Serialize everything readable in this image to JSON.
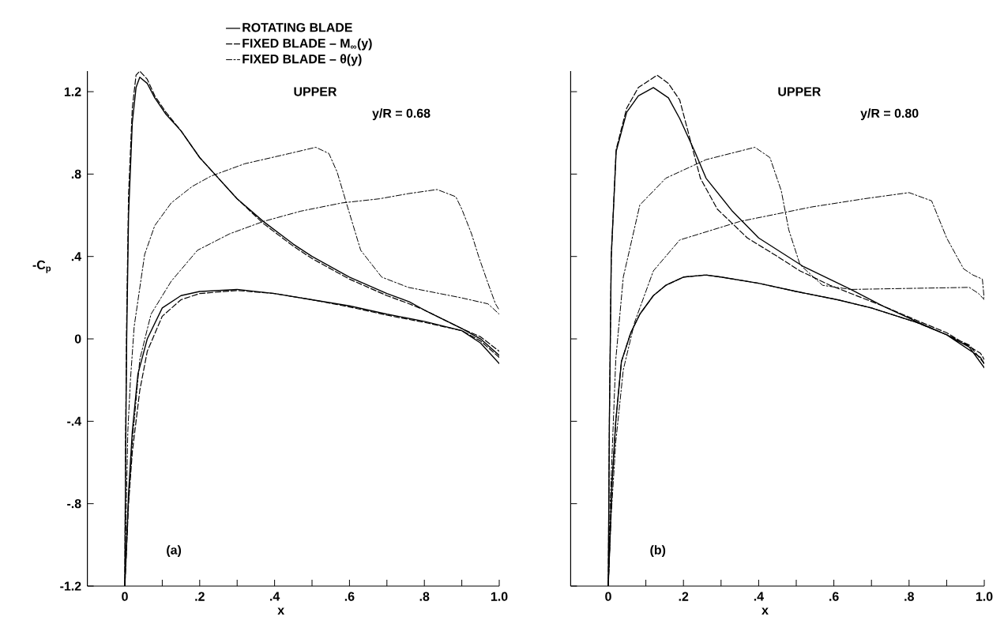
{
  "chart_data": [
    {
      "type": "line",
      "xlabel": "x",
      "ylabel": "-C$_{p}$",
      "annotations": [
        "UPPER",
        "y/R = 0.68",
        "(a)"
      ],
      "xlim": [
        -0.1,
        1.0
      ],
      "ylim": [
        -1.2,
        1.3
      ],
      "xticks": [
        {
          "value": 0,
          "label": "0"
        },
        {
          "value": 0.1,
          "label": null
        },
        {
          "value": 0.2,
          "label": ".2"
        },
        {
          "value": 0.3,
          "label": null
        },
        {
          "value": 0.4,
          "label": ".4"
        },
        {
          "value": 0.5,
          "label": null
        },
        {
          "value": 0.6,
          "label": ".6"
        },
        {
          "value": 0.7,
          "label": null
        },
        {
          "value": 0.8,
          "label": ".8"
        },
        {
          "value": 0.9,
          "label": null
        },
        {
          "value": 1.0,
          "label": "1.0"
        }
      ],
      "yticks": [
        {
          "value": -1.2,
          "label": "-1.2"
        },
        {
          "value": -0.8,
          "label": "-.8"
        },
        {
          "value": -0.4,
          "label": "-.4"
        },
        {
          "value": 0,
          "label": "0"
        },
        {
          "value": 0.4,
          "label": ".4"
        },
        {
          "value": 0.8,
          "label": ".8"
        },
        {
          "value": 1.2,
          "label": "1.2"
        }
      ],
      "legend": "top",
      "series": [
        {
          "name": "ROTATING BLADE",
          "color": "#000000",
          "line_style": "solid",
          "x": [
            1.0,
            0.95,
            0.9,
            0.8,
            0.7,
            0.6,
            0.5,
            0.4,
            0.3,
            0.2,
            0.15,
            0.1,
            0.06,
            0.035,
            0.02,
            0.01,
            0.004,
            0,
            0.002,
            0.005,
            0.01,
            0.02,
            0.03,
            0.04,
            0.06,
            0.08,
            0.11,
            0.15,
            0.2,
            0.24,
            0.3,
            0.37,
            0.45,
            0.5,
            0.6,
            0.7,
            0.76,
            0.8,
            0.9,
            0.95,
            1.0
          ],
          "values": [
            -0.12,
            -0.02,
            0.04,
            0.085,
            0.12,
            0.16,
            0.19,
            0.22,
            0.24,
            0.23,
            0.21,
            0.15,
            0.0,
            -0.17,
            -0.45,
            -0.75,
            -1.03,
            -1.2,
            -0.6,
            0.0,
            0.6,
            1.05,
            1.22,
            1.27,
            1.24,
            1.17,
            1.09,
            1.01,
            0.88,
            0.8,
            0.68,
            0.57,
            0.46,
            0.4,
            0.3,
            0.22,
            0.18,
            0.14,
            0.05,
            0.0,
            -0.08
          ]
        },
        {
          "name": "FIXED BLADE – M$_{∞}$(y)",
          "color": "#000000",
          "line_style": "dashed",
          "x": [
            1.0,
            0.95,
            0.9,
            0.8,
            0.7,
            0.6,
            0.5,
            0.4,
            0.3,
            0.2,
            0.15,
            0.1,
            0.06,
            0.04,
            0.02,
            0.01,
            0.004,
            0,
            0.002,
            0.005,
            0.01,
            0.02,
            0.03,
            0.04,
            0.06,
            0.08,
            0.11,
            0.15,
            0.2,
            0.24,
            0.3,
            0.37,
            0.45,
            0.5,
            0.6,
            0.7,
            0.76,
            0.8,
            0.9,
            0.95,
            1.0
          ],
          "values": [
            -0.09,
            -0.01,
            0.04,
            0.08,
            0.115,
            0.155,
            0.19,
            0.22,
            0.235,
            0.22,
            0.19,
            0.11,
            -0.06,
            -0.25,
            -0.55,
            -0.8,
            -1.05,
            -1.2,
            -0.5,
            0.1,
            0.7,
            1.12,
            1.28,
            1.3,
            1.26,
            1.18,
            1.1,
            1.01,
            0.88,
            0.8,
            0.68,
            0.56,
            0.45,
            0.39,
            0.29,
            0.21,
            0.17,
            0.14,
            0.05,
            0.01,
            -0.06
          ]
        },
        {
          "name": "FIXED BLADE – θ(y)",
          "color": "#000000",
          "line_style": "dashdot",
          "x": [
            0,
            0.003,
            0.008,
            0.015,
            0.025,
            0.053,
            0.08,
            0.124,
            0.18,
            0.23,
            0.32,
            0.44,
            0.51,
            0.545,
            0.567,
            0.595,
            0.63,
            0.686,
            0.757,
            0.897,
            0.97,
            1.0
          ],
          "values": [
            -1.2,
            -0.9,
            -0.45,
            -0.2,
            0.06,
            0.41,
            0.55,
            0.66,
            0.74,
            0.79,
            0.85,
            0.9,
            0.93,
            0.9,
            0.81,
            0.64,
            0.43,
            0.3,
            0.25,
            0.2,
            0.17,
            0.12
          ]
        },
        {
          "color": "#000000",
          "line_style": "dashdot",
          "x": [
            0.002,
            0.008,
            0.02,
            0.04,
            0.07,
            0.124,
            0.194,
            0.28,
            0.37,
            0.47,
            0.58,
            0.68,
            0.757,
            0.834,
            0.884,
            0.9,
            0.926,
            0.945,
            0.968,
            0.99,
            1.0
          ],
          "values": [
            -1.1,
            -0.85,
            -0.5,
            -0.1,
            0.12,
            0.28,
            0.43,
            0.51,
            0.57,
            0.62,
            0.66,
            0.68,
            0.705,
            0.725,
            0.69,
            0.63,
            0.51,
            0.4,
            0.28,
            0.17,
            0.14
          ]
        }
      ]
    },
    {
      "type": "line",
      "xlabel": "x",
      "annotations": [
        "UPPER",
        "y/R = 0.80",
        "(b)"
      ],
      "xlim": [
        -0.1,
        1.0
      ],
      "ylim": [
        -1.2,
        1.3
      ],
      "tick_labels": "x",
      "xticks": [
        {
          "value": 0,
          "label": "0"
        },
        {
          "value": 0.1,
          "label": null
        },
        {
          "value": 0.2,
          "label": ".2"
        },
        {
          "value": 0.3,
          "label": null
        },
        {
          "value": 0.4,
          "label": ".4"
        },
        {
          "value": 0.5,
          "label": null
        },
        {
          "value": 0.6,
          "label": ".6"
        },
        {
          "value": 0.7,
          "label": null
        },
        {
          "value": 0.8,
          "label": ".8"
        },
        {
          "value": 0.9,
          "label": null
        },
        {
          "value": 1.0,
          "label": "1.0"
        }
      ],
      "yticks": [
        {
          "value": -1.2,
          "label": null
        },
        {
          "value": -0.8,
          "label": null
        },
        {
          "value": -0.4,
          "label": null
        },
        {
          "value": 0,
          "label": null
        },
        {
          "value": 0.4,
          "label": null
        },
        {
          "value": 0.8,
          "label": null
        },
        {
          "value": 1.2,
          "label": null
        }
      ],
      "series": [
        {
          "color": "#000000",
          "line_style": "solid",
          "x": [
            1.0,
            0.96,
            0.9,
            0.82,
            0.7,
            0.61,
            0.5,
            0.4,
            0.3,
            0.26,
            0.2,
            0.153,
            0.12,
            0.084,
            0.06,
            0.035,
            0.02,
            0.01,
            0.004,
            0,
            0.003,
            0.008,
            0.021,
            0.049,
            0.08,
            0.12,
            0.16,
            0.19,
            0.23,
            0.26,
            0.33,
            0.4,
            0.52,
            0.645,
            0.73,
            0.82,
            0.9,
            0.99,
            1.0
          ],
          "values": [
            -0.14,
            -0.04,
            0.02,
            0.08,
            0.15,
            0.19,
            0.23,
            0.27,
            0.3,
            0.31,
            0.3,
            0.26,
            0.21,
            0.12,
            0.03,
            -0.11,
            -0.4,
            -0.7,
            -1.0,
            -1.2,
            -0.4,
            0.4,
            0.91,
            1.1,
            1.18,
            1.22,
            1.17,
            1.07,
            0.91,
            0.78,
            0.62,
            0.49,
            0.35,
            0.24,
            0.16,
            0.084,
            0.02,
            -0.09,
            -0.12
          ]
        },
        {
          "color": "#000000",
          "line_style": "dashed",
          "x": [
            1.0,
            0.96,
            0.9,
            0.82,
            0.7,
            0.61,
            0.5,
            0.4,
            0.3,
            0.26,
            0.2,
            0.153,
            0.12,
            0.084,
            0.06,
            0.035,
            0.02,
            0.01,
            0.004,
            0,
            0.003,
            0.008,
            0.021,
            0.049,
            0.08,
            0.13,
            0.16,
            0.19,
            0.245,
            0.29,
            0.37,
            0.45,
            0.51,
            0.59,
            0.73,
            0.82,
            0.9,
            0.99,
            1.0
          ],
          "values": [
            -0.12,
            -0.03,
            0.02,
            0.08,
            0.15,
            0.19,
            0.23,
            0.27,
            0.3,
            0.31,
            0.3,
            0.26,
            0.21,
            0.12,
            0.03,
            -0.11,
            -0.4,
            -0.7,
            -1.0,
            -1.2,
            -0.4,
            0.4,
            0.92,
            1.12,
            1.22,
            1.28,
            1.24,
            1.16,
            0.78,
            0.63,
            0.49,
            0.4,
            0.33,
            0.26,
            0.16,
            0.09,
            0.03,
            -0.07,
            -0.1
          ]
        },
        {
          "color": "#000000",
          "line_style": "dashdot",
          "x": [
            0,
            0.005,
            0.02,
            0.04,
            0.084,
            0.153,
            0.26,
            0.39,
            0.43,
            0.46,
            0.48,
            0.51,
            0.57,
            0.645,
            0.8,
            0.96,
            0.985,
            1.0
          ],
          "values": [
            -1.2,
            -0.8,
            -0.1,
            0.3,
            0.65,
            0.78,
            0.87,
            0.93,
            0.88,
            0.72,
            0.53,
            0.36,
            0.26,
            0.24,
            0.245,
            0.25,
            0.22,
            0.19
          ]
        },
        {
          "color": "#000000",
          "line_style": "dashdot",
          "x": [
            0,
            0.008,
            0.02,
            0.04,
            0.07,
            0.12,
            0.19,
            0.35,
            0.54,
            0.68,
            0.8,
            0.86,
            0.9,
            0.945,
            0.97,
            0.995,
            1.0
          ],
          "values": [
            -1.2,
            -0.85,
            -0.5,
            -0.15,
            0.08,
            0.33,
            0.48,
            0.57,
            0.64,
            0.68,
            0.71,
            0.67,
            0.49,
            0.34,
            0.31,
            0.29,
            0.19
          ]
        }
      ]
    }
  ]
}
